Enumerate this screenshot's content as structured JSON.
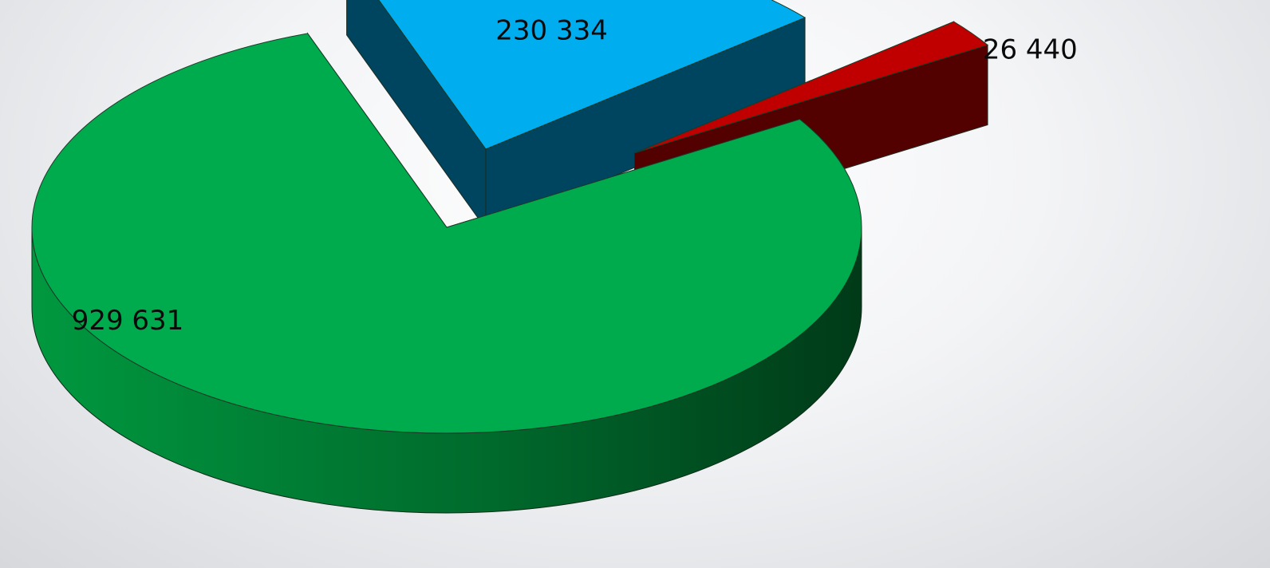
{
  "chart_data": {
    "type": "pie",
    "style": "3d-exploded",
    "title": "",
    "slices": [
      {
        "name": "",
        "value": 929631,
        "label": "929 631",
        "color": "#00ab4e"
      },
      {
        "name": "",
        "value": 230334,
        "label": "230 334",
        "color": "#00aeef"
      },
      {
        "name": "",
        "value": 26440,
        "label": "26 440",
        "color": "#c00000"
      }
    ],
    "legend": "none"
  }
}
